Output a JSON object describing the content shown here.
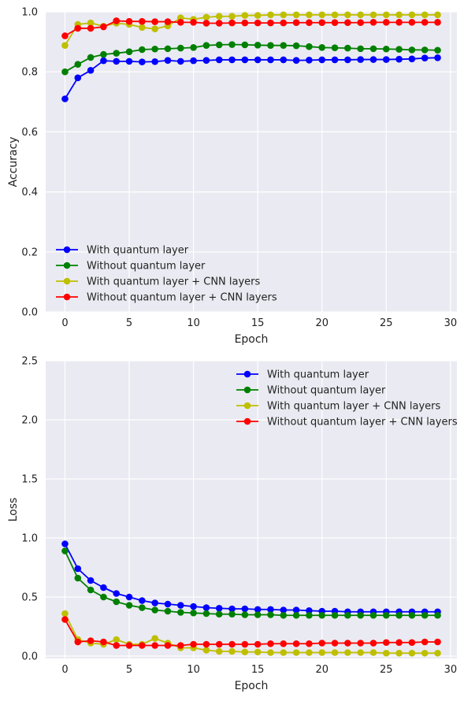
{
  "chart_data": [
    {
      "type": "line",
      "xlabel": "Epoch",
      "ylabel": "Accuracy",
      "xlim": [
        -1.5,
        30.5
      ],
      "ylim": [
        0.0,
        1.0
      ],
      "xticks": [
        0,
        5,
        10,
        15,
        20,
        25,
        30
      ],
      "yticks": [
        0.0,
        0.2,
        0.4,
        0.6,
        0.8,
        1.0
      ],
      "ytick_labels": [
        "0.0",
        "0.2",
        "0.4",
        "0.6",
        "0.8",
        "1.0"
      ],
      "grid": true,
      "legend_position": "lower-left",
      "x": [
        0,
        1,
        2,
        3,
        4,
        5,
        6,
        7,
        8,
        9,
        10,
        11,
        12,
        13,
        14,
        15,
        16,
        17,
        18,
        19,
        20,
        21,
        22,
        23,
        24,
        25,
        26,
        27,
        28,
        29
      ],
      "series": [
        {
          "name": "With quantum layer",
          "color": "#0000ff",
          "values": [
            0.71,
            0.78,
            0.805,
            0.837,
            0.835,
            0.835,
            0.833,
            0.834,
            0.838,
            0.835,
            0.837,
            0.838,
            0.84,
            0.84,
            0.84,
            0.84,
            0.84,
            0.84,
            0.838,
            0.839,
            0.84,
            0.84,
            0.84,
            0.841,
            0.841,
            0.841,
            0.842,
            0.843,
            0.846,
            0.847
          ]
        },
        {
          "name": "Without quantum layer",
          "color": "#008000",
          "values": [
            0.8,
            0.825,
            0.848,
            0.858,
            0.862,
            0.867,
            0.874,
            0.876,
            0.877,
            0.879,
            0.881,
            0.888,
            0.89,
            0.891,
            0.89,
            0.889,
            0.888,
            0.888,
            0.887,
            0.884,
            0.881,
            0.88,
            0.879,
            0.877,
            0.877,
            0.876,
            0.875,
            0.873,
            0.873,
            0.872
          ]
        },
        {
          "name": "With quantum layer + CNN layers",
          "color": "#bfbf00",
          "values": [
            0.888,
            0.958,
            0.963,
            0.952,
            0.962,
            0.958,
            0.948,
            0.943,
            0.953,
            0.98,
            0.975,
            0.982,
            0.985,
            0.985,
            0.988,
            0.988,
            0.99,
            0.99,
            0.99,
            0.99,
            0.99,
            0.99,
            0.99,
            0.99,
            0.99,
            0.99,
            0.99,
            0.99,
            0.99,
            0.99
          ]
        },
        {
          "name": "Without quantum layer + CNN layers",
          "color": "#ff0000",
          "values": [
            0.92,
            0.945,
            0.945,
            0.95,
            0.97,
            0.968,
            0.968,
            0.967,
            0.967,
            0.965,
            0.965,
            0.962,
            0.962,
            0.963,
            0.963,
            0.963,
            0.963,
            0.963,
            0.964,
            0.964,
            0.964,
            0.964,
            0.964,
            0.964,
            0.965,
            0.965,
            0.965,
            0.965,
            0.965,
            0.965
          ]
        }
      ]
    },
    {
      "type": "line",
      "xlabel": "Epoch",
      "ylabel": "Loss",
      "xlim": [
        -1.5,
        30.5
      ],
      "ylim": [
        -0.02,
        2.5
      ],
      "xticks": [
        0,
        5,
        10,
        15,
        20,
        25,
        30
      ],
      "yticks": [
        0.0,
        0.5,
        1.0,
        1.5,
        2.0,
        2.5
      ],
      "ytick_labels": [
        "0.0",
        "0.5",
        "1.0",
        "1.5",
        "2.0",
        "2.5"
      ],
      "grid": true,
      "legend_position": "upper-right",
      "x": [
        0,
        1,
        2,
        3,
        4,
        5,
        6,
        7,
        8,
        9,
        10,
        11,
        12,
        13,
        14,
        15,
        16,
        17,
        18,
        19,
        20,
        21,
        22,
        23,
        24,
        25,
        26,
        27,
        28,
        29
      ],
      "series": [
        {
          "name": "With quantum layer",
          "color": "#0000ff",
          "values": [
            0.95,
            0.74,
            0.64,
            0.58,
            0.53,
            0.5,
            0.47,
            0.45,
            0.44,
            0.43,
            0.42,
            0.41,
            0.405,
            0.4,
            0.4,
            0.395,
            0.395,
            0.39,
            0.39,
            0.385,
            0.38,
            0.38,
            0.375,
            0.375,
            0.375,
            0.375,
            0.375,
            0.375,
            0.375,
            0.375
          ]
        },
        {
          "name": "Without quantum layer",
          "color": "#008000",
          "values": [
            0.89,
            0.66,
            0.56,
            0.5,
            0.46,
            0.43,
            0.41,
            0.39,
            0.38,
            0.37,
            0.365,
            0.36,
            0.355,
            0.355,
            0.35,
            0.35,
            0.35,
            0.345,
            0.345,
            0.345,
            0.345,
            0.345,
            0.345,
            0.345,
            0.345,
            0.345,
            0.345,
            0.345,
            0.345,
            0.345
          ]
        },
        {
          "name": "With quantum layer + CNN layers",
          "color": "#bfbf00",
          "values": [
            0.36,
            0.14,
            0.11,
            0.1,
            0.14,
            0.1,
            0.1,
            0.15,
            0.11,
            0.07,
            0.07,
            0.05,
            0.04,
            0.04,
            0.035,
            0.035,
            0.03,
            0.03,
            0.03,
            0.03,
            0.03,
            0.03,
            0.03,
            0.03,
            0.03,
            0.025,
            0.025,
            0.025,
            0.025,
            0.025
          ]
        },
        {
          "name": "Without quantum layer + CNN layers",
          "color": "#ff0000",
          "values": [
            0.31,
            0.12,
            0.13,
            0.12,
            0.09,
            0.09,
            0.09,
            0.09,
            0.09,
            0.09,
            0.1,
            0.1,
            0.1,
            0.1,
            0.1,
            0.1,
            0.105,
            0.105,
            0.105,
            0.105,
            0.11,
            0.11,
            0.11,
            0.11,
            0.11,
            0.115,
            0.115,
            0.115,
            0.12,
            0.12
          ]
        }
      ]
    }
  ]
}
